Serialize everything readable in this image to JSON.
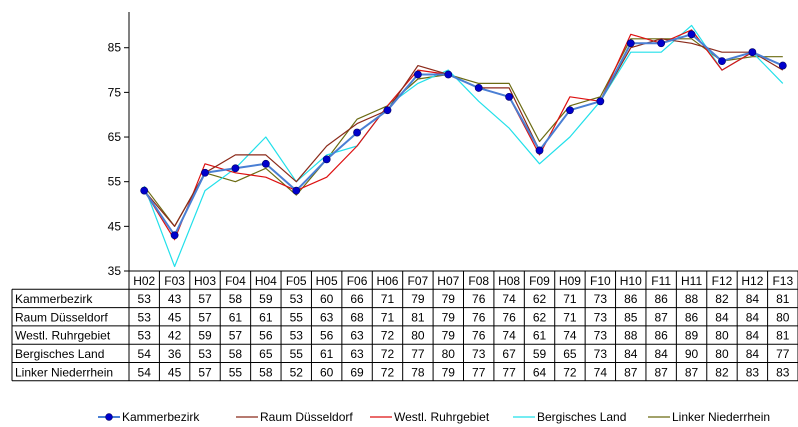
{
  "chart_data": {
    "type": "line",
    "title": "",
    "xlabel": "",
    "ylabel": "",
    "ylim": [
      35,
      93
    ],
    "yticks": [
      35,
      45,
      55,
      65,
      75,
      85
    ],
    "grid": false,
    "legend_position": "bottom",
    "data_table": true,
    "categories": [
      "H02",
      "F03",
      "H03",
      "F04",
      "H04",
      "F05",
      "H05",
      "F06",
      "H06",
      "F07",
      "H07",
      "F08",
      "H08",
      "F09",
      "H09",
      "F10",
      "H10",
      "F11",
      "H11",
      "F12",
      "H12",
      "F13"
    ],
    "series": [
      {
        "name": "Kammerbezirk",
        "color": "#4a7fd4",
        "marker": "circle",
        "marker_color": "#0000cc",
        "values": [
          53,
          43,
          57,
          58,
          59,
          53,
          60,
          66,
          71,
          79,
          79,
          76,
          74,
          62,
          71,
          73,
          86,
          86,
          88,
          82,
          84,
          81
        ]
      },
      {
        "name": "Raum Düsseldorf",
        "color": "#8b2a1a",
        "values": [
          53,
          45,
          57,
          61,
          61,
          55,
          63,
          68,
          71,
          81,
          79,
          76,
          76,
          62,
          71,
          73,
          85,
          87,
          86,
          84,
          84,
          80
        ]
      },
      {
        "name": "Westl. Ruhrgebiet",
        "color": "#dd1111",
        "values": [
          53,
          42,
          59,
          57,
          56,
          53,
          56,
          63,
          72,
          80,
          79,
          76,
          74,
          61,
          74,
          73,
          88,
          86,
          89,
          80,
          84,
          81
        ]
      },
      {
        "name": "Bergisches Land",
        "color": "#22e0ea",
        "values": [
          54,
          36,
          53,
          58,
          65,
          55,
          61,
          63,
          72,
          77,
          80,
          73,
          67,
          59,
          65,
          73,
          84,
          84,
          90,
          80,
          84,
          77
        ]
      },
      {
        "name": "Linker Niederrhein",
        "color": "#6b6b12",
        "values": [
          54,
          45,
          57,
          55,
          58,
          52,
          60,
          69,
          72,
          78,
          79,
          77,
          77,
          64,
          72,
          74,
          87,
          87,
          87,
          82,
          83,
          83
        ]
      }
    ]
  }
}
